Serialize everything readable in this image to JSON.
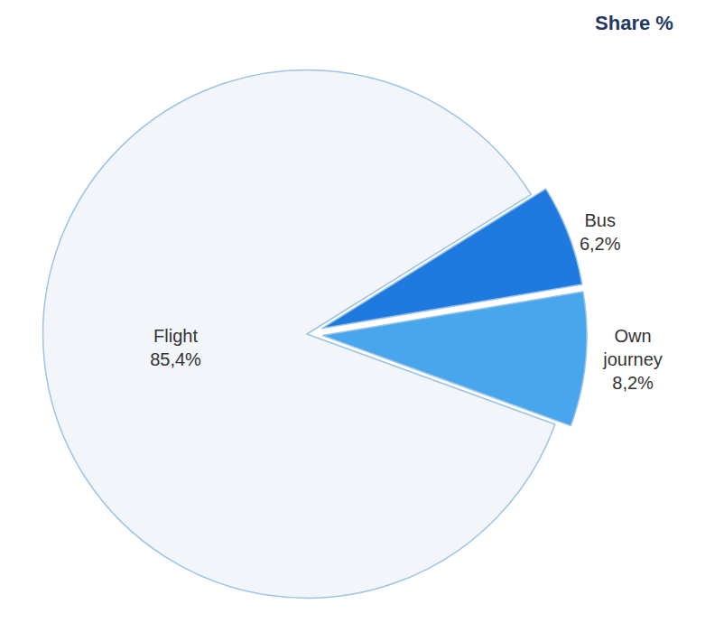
{
  "chart_data": {
    "type": "pie",
    "title": "Share %",
    "categories": [
      "Flight",
      "Bus",
      "Own journey"
    ],
    "values": [
      85.4,
      6.2,
      8.2
    ],
    "value_labels": [
      "85,4%",
      "6,2%",
      "8,2%"
    ],
    "colors": [
      "#f2f5f9",
      "#1f7ae0",
      "#47a6ec"
    ],
    "data_labels": true
  }
}
